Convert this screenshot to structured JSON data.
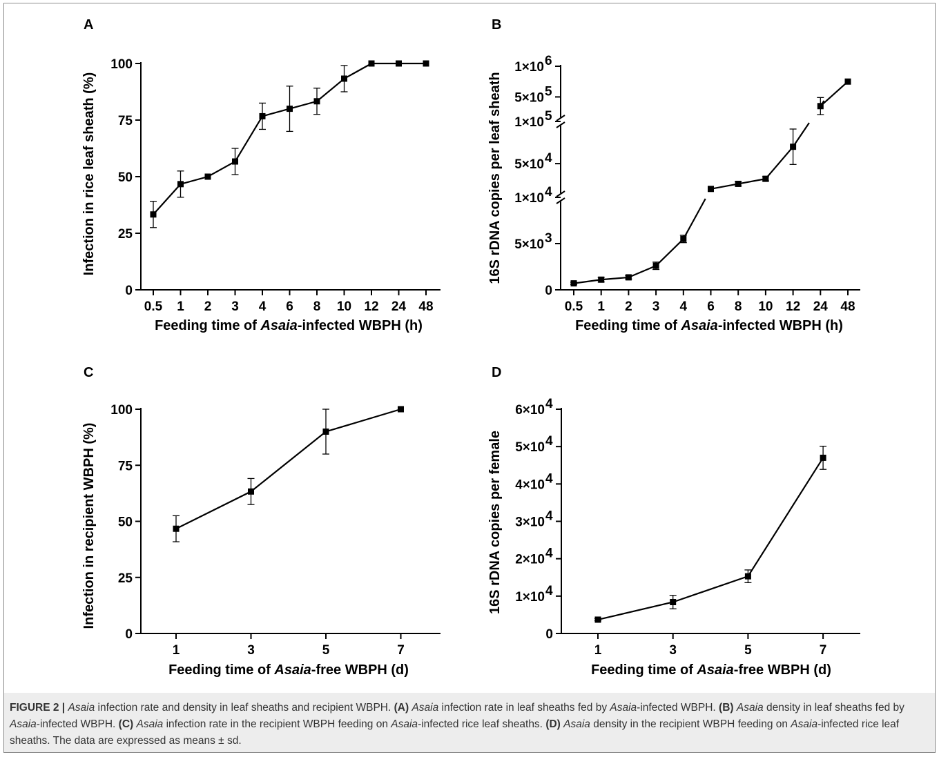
{
  "chart_data": [
    {
      "id": "A",
      "type": "line",
      "panel_label": "A",
      "xlabel_parts": [
        "Feeding time of ",
        "Asaia",
        "-infected WBPH (h)"
      ],
      "ylabel": "Infection in rice leaf sheath (%)",
      "categories": [
        "0.5",
        "1",
        "2",
        "3",
        "4",
        "6",
        "8",
        "10",
        "12",
        "24",
        "48"
      ],
      "values": [
        33.3,
        46.7,
        50,
        56.7,
        76.7,
        80,
        83.3,
        93.3,
        100,
        100,
        100
      ],
      "errors": [
        5.8,
        5.8,
        0,
        5.8,
        5.8,
        10,
        5.8,
        5.8,
        0,
        0,
        0
      ],
      "ylim": [
        0,
        100
      ],
      "yticks": [
        0,
        25,
        50,
        75,
        100
      ],
      "ytick_labels": [
        "0",
        "25",
        "50",
        "75",
        "100"
      ]
    },
    {
      "id": "B",
      "type": "line",
      "panel_label": "B",
      "xlabel_parts": [
        "Feeding time of ",
        "Asaia",
        "-infected WBPH (h)"
      ],
      "ylabel": "16S rDNA copies per leaf sheath",
      "categories": [
        "0.5",
        "1",
        "2",
        "3",
        "4",
        "6",
        "8",
        "10",
        "12",
        "24",
        "48"
      ],
      "values": [
        700,
        1100,
        1350,
        2600,
        5500,
        20000,
        26000,
        32000,
        70000,
        350000,
        750000
      ],
      "errors": [
        120,
        250,
        180,
        400,
        400,
        0,
        2500,
        2500,
        21000,
        140000,
        0
      ],
      "y_axis_breaks": [
        10000,
        100000
      ],
      "yticks": [
        {
          "value": 0,
          "label": [
            "0",
            ""
          ]
        },
        {
          "value": 5000,
          "label": [
            "5×10",
            "3"
          ]
        },
        {
          "value": 10000,
          "label": [
            "1×10",
            "4"
          ]
        },
        {
          "value": 50000,
          "label": [
            "5×10",
            "4"
          ]
        },
        {
          "value": 100000,
          "label": [
            "1×10",
            "5"
          ]
        },
        {
          "value": 500000,
          "label": [
            "5×10",
            "5"
          ]
        },
        {
          "value": 1000000,
          "label": [
            "1×10",
            "6"
          ]
        }
      ]
    },
    {
      "id": "C",
      "type": "line",
      "panel_label": "C",
      "xlabel_parts": [
        "Feeding time of ",
        "Asaia",
        "-free WBPH (d)"
      ],
      "ylabel": "Infection in recipient WBPH  (%)",
      "categories": [
        "1",
        "3",
        "5",
        "7"
      ],
      "values": [
        46.7,
        63.3,
        90,
        100
      ],
      "errors": [
        5.8,
        5.8,
        10,
        0
      ],
      "ylim": [
        0,
        100
      ],
      "yticks": [
        0,
        25,
        50,
        75,
        100
      ],
      "ytick_labels": [
        "0",
        "25",
        "50",
        "75",
        "100"
      ]
    },
    {
      "id": "D",
      "type": "line",
      "panel_label": "D",
      "xlabel_parts": [
        "Feeding time of ",
        "Asaia",
        "-free WBPH (d)"
      ],
      "ylabel": "16S rDNA copies per female",
      "categories": [
        "1",
        "3",
        "5",
        "7"
      ],
      "values": [
        3700,
        8400,
        15300,
        47000
      ],
      "errors": [
        300,
        1800,
        1700,
        3100
      ],
      "ylim": [
        0,
        60000
      ],
      "yticks": [
        {
          "value": 0,
          "label": [
            "0",
            ""
          ]
        },
        {
          "value": 10000,
          "label": [
            "1×10",
            "4"
          ]
        },
        {
          "value": 20000,
          "label": [
            "2×10",
            "4"
          ]
        },
        {
          "value": 30000,
          "label": [
            "3×10",
            "4"
          ]
        },
        {
          "value": 40000,
          "label": [
            "4×10",
            "4"
          ]
        },
        {
          "value": 50000,
          "label": [
            "5×10",
            "4"
          ]
        },
        {
          "value": 60000,
          "label": [
            "6×10",
            "4"
          ]
        }
      ]
    }
  ],
  "caption": {
    "segments": [
      {
        "t": "FIGURE 2 | ",
        "s": "b"
      },
      {
        "t": "Asaia",
        "s": "i"
      },
      {
        "t": " infection rate and density in leaf sheaths and recipient WBPH. ",
        "s": ""
      },
      {
        "t": "(A)",
        "s": "b"
      },
      {
        "t": " ",
        "s": ""
      },
      {
        "t": "Asaia",
        "s": "i"
      },
      {
        "t": " infection rate in leaf sheaths fed by ",
        "s": ""
      },
      {
        "t": "Asaia",
        "s": "i"
      },
      {
        "t": "-infected WBPH. ",
        "s": ""
      },
      {
        "t": "(B)",
        "s": "b"
      },
      {
        "t": " ",
        "s": ""
      },
      {
        "t": "Asaia",
        "s": "i"
      },
      {
        "t": " density in leaf sheaths fed by ",
        "s": ""
      },
      {
        "t": "Asaia",
        "s": "i"
      },
      {
        "t": "-infected WBPH. ",
        "s": ""
      },
      {
        "t": "(C)",
        "s": "b"
      },
      {
        "t": " ",
        "s": ""
      },
      {
        "t": "Asaia",
        "s": "i"
      },
      {
        "t": " infection rate in the recipient WBPH feeding on ",
        "s": ""
      },
      {
        "t": "Asaia",
        "s": "i"
      },
      {
        "t": "-infected rice leaf sheaths. ",
        "s": ""
      },
      {
        "t": "(D)",
        "s": "b"
      },
      {
        "t": " ",
        "s": ""
      },
      {
        "t": "Asaia",
        "s": "i"
      },
      {
        "t": " density in the recipient WBPH feeding on ",
        "s": ""
      },
      {
        "t": "Asaia",
        "s": "i"
      },
      {
        "t": "-infected rice leaf sheaths. The data are expressed as means ± sd.",
        "s": ""
      }
    ]
  },
  "colors": {
    "line": "#000000",
    "caption_band": "#ededed",
    "caption_text": "#333333",
    "frame": "#8a8a8a"
  }
}
